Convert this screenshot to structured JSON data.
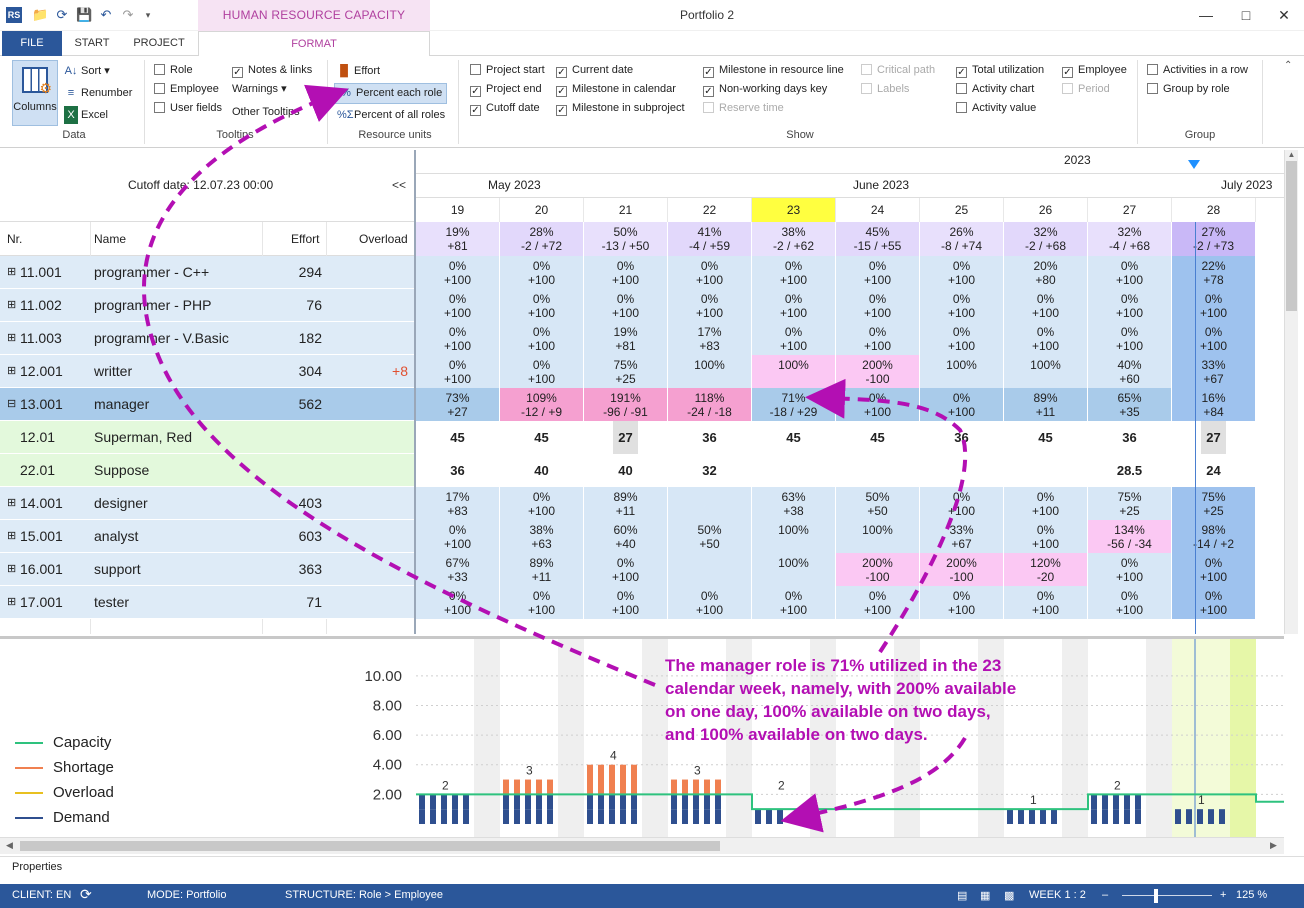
{
  "app": {
    "title": "Portfolio 2",
    "context_tab": "HUMAN RESOURCE CAPACITY PLANNING",
    "app_icon": "RS"
  },
  "tabs": [
    "FILE",
    "START",
    "PROJECT",
    "FORMAT"
  ],
  "ribbon": {
    "data": {
      "columns": "Columns",
      "sort": "Sort",
      "renumber": "Renumber",
      "excel": "Excel",
      "label": "Data"
    },
    "tooltips": {
      "role": "Role",
      "employee": "Employee",
      "user_fields": "User fields",
      "notes_links": "Notes & links",
      "warnings": "Warnings",
      "other_tooltips": "Other Tooltips",
      "label": "Tooltips"
    },
    "resource_units": {
      "effort": "Effort",
      "percent_each_role": "Percent each role",
      "percent_all_roles": "Percent of all roles",
      "label": "Resource units"
    },
    "show": {
      "project_start": "Project start",
      "project_end": "Project end",
      "cutoff_date": "Cutoff date",
      "current_date": "Current date",
      "milestone_calendar": "Milestone in calendar",
      "milestone_subproject": "Milestone in subproject",
      "milestone_resource": "Milestone in resource line",
      "nonworking": "Non-working days key",
      "reserve_time": "Reserve time",
      "critical_path": "Critical path",
      "labels": "Labels",
      "total_util": "Total utilization",
      "activity_chart": "Activity chart",
      "activity_value": "Activity value",
      "employee": "Employee",
      "period": "Period",
      "label": "Show"
    },
    "group": {
      "activities_row": "Activities in a row",
      "group_role": "Group by role",
      "label": "Group"
    }
  },
  "grid": {
    "cutoff": "Cutoff date: 12.07.23 00:00",
    "collapse": "<<",
    "headers": {
      "nr": "Nr.",
      "name": "Name",
      "effort": "Effort",
      "overload": "Overload"
    },
    "year": "2023",
    "months": [
      "May 2023",
      "June 2023",
      "July 2023"
    ],
    "weeks": [
      "19",
      "20",
      "21",
      "22",
      "23",
      "24",
      "25",
      "26",
      "27",
      "28"
    ],
    "totals": [
      [
        "19%",
        "+81"
      ],
      [
        "28%",
        "-2 / +72"
      ],
      [
        "50%",
        "-13 / +50"
      ],
      [
        "41%",
        "-4 / +59"
      ],
      [
        "38%",
        "-2 / +62"
      ],
      [
        "45%",
        "-15 / +55"
      ],
      [
        "26%",
        "-8 / +74"
      ],
      [
        "32%",
        "-2 / +68"
      ],
      [
        "32%",
        "-4 / +68"
      ],
      [
        "27%",
        "-2 / +73"
      ]
    ],
    "rows": [
      {
        "nr": "11.001",
        "name": "programmer - C++",
        "effort": "294",
        "overload": "",
        "cells": [
          [
            "0%",
            "+100"
          ],
          [
            "0%",
            "+100"
          ],
          [
            "0%",
            "+100"
          ],
          [
            "0%",
            "+100"
          ],
          [
            "0%",
            "+100"
          ],
          [
            "0%",
            "+100"
          ],
          [
            "0%",
            "+100"
          ],
          [
            "20%",
            "+80"
          ],
          [
            "0%",
            "+100"
          ],
          [
            "22%",
            "+78"
          ]
        ]
      },
      {
        "nr": "11.002",
        "name": "programmer - PHP",
        "effort": "76",
        "overload": "",
        "cells": [
          [
            "0%",
            "+100"
          ],
          [
            "0%",
            "+100"
          ],
          [
            "0%",
            "+100"
          ],
          [
            "0%",
            "+100"
          ],
          [
            "0%",
            "+100"
          ],
          [
            "0%",
            "+100"
          ],
          [
            "0%",
            "+100"
          ],
          [
            "0%",
            "+100"
          ],
          [
            "0%",
            "+100"
          ],
          [
            "0%",
            "+100"
          ]
        ]
      },
      {
        "nr": "11.003",
        "name": "programmer - V.Basic",
        "effort": "182",
        "overload": "",
        "cells": [
          [
            "0%",
            "+100"
          ],
          [
            "0%",
            "+100"
          ],
          [
            "19%",
            "+81"
          ],
          [
            "17%",
            "+83"
          ],
          [
            "0%",
            "+100"
          ],
          [
            "0%",
            "+100"
          ],
          [
            "0%",
            "+100"
          ],
          [
            "0%",
            "+100"
          ],
          [
            "0%",
            "+100"
          ],
          [
            "0%",
            "+100"
          ]
        ]
      },
      {
        "nr": "12.001",
        "name": "writter",
        "effort": "304",
        "overload": "+8",
        "cells": [
          [
            "0%",
            "+100"
          ],
          [
            "0%",
            "+100"
          ],
          [
            "75%",
            "+25"
          ],
          [
            "100%",
            ""
          ],
          [
            "100%",
            ""
          ],
          [
            "200%",
            "-100"
          ],
          [
            "100%",
            ""
          ],
          [
            "100%",
            ""
          ],
          [
            "40%",
            "+60"
          ],
          [
            "33%",
            "+67"
          ]
        ]
      },
      {
        "nr": "13.001",
        "name": "manager",
        "effort": "562",
        "overload": "",
        "cells": [
          [
            "73%",
            "+27"
          ],
          [
            "109%",
            "-12 / +9"
          ],
          [
            "191%",
            "-96 / -91"
          ],
          [
            "118%",
            "-24 / -18"
          ],
          [
            "71%",
            "-18 / +29"
          ],
          [
            "0%",
            "+100"
          ],
          [
            "0%",
            "+100"
          ],
          [
            "89%",
            "+11"
          ],
          [
            "65%",
            "+35"
          ],
          [
            "16%",
            "+84"
          ]
        ]
      },
      {
        "nr": "12.01",
        "name": "Superman, Red",
        "effort": "",
        "overload": "",
        "cells": [
          [
            "45",
            ""
          ],
          [
            "45",
            ""
          ],
          [
            "27",
            ""
          ],
          [
            "36",
            ""
          ],
          [
            "45",
            ""
          ],
          [
            "45",
            ""
          ],
          [
            "36",
            ""
          ],
          [
            "45",
            ""
          ],
          [
            "36",
            ""
          ],
          [
            "27",
            ""
          ]
        ]
      },
      {
        "nr": "22.01",
        "name": "Suppose",
        "effort": "",
        "overload": "",
        "cells": [
          [
            "36",
            ""
          ],
          [
            "40",
            ""
          ],
          [
            "40",
            ""
          ],
          [
            "32",
            ""
          ],
          [
            "",
            ""
          ],
          [
            "",
            ""
          ],
          [
            "",
            ""
          ],
          [
            "",
            ""
          ],
          [
            "28.5",
            ""
          ],
          [
            "24",
            ""
          ]
        ]
      },
      {
        "nr": "14.001",
        "name": "designer",
        "effort": "403",
        "overload": "",
        "cells": [
          [
            "17%",
            "+83"
          ],
          [
            "0%",
            "+100"
          ],
          [
            "89%",
            "+11"
          ],
          [
            "",
            ""
          ],
          [
            "63%",
            "+38"
          ],
          [
            "50%",
            "+50"
          ],
          [
            "0%",
            "+100"
          ],
          [
            "0%",
            "+100"
          ],
          [
            "75%",
            "+25"
          ],
          [
            "75%",
            "+25"
          ]
        ]
      },
      {
        "nr": "15.001",
        "name": "analyst",
        "effort": "603",
        "overload": "",
        "cells": [
          [
            "0%",
            "+100"
          ],
          [
            "38%",
            "+63"
          ],
          [
            "60%",
            "+40"
          ],
          [
            "50%",
            "+50"
          ],
          [
            "100%",
            ""
          ],
          [
            "100%",
            ""
          ],
          [
            "33%",
            "+67"
          ],
          [
            "0%",
            "+100"
          ],
          [
            "134%",
            "-56 / -34"
          ],
          [
            "98%",
            "-14 / +2"
          ]
        ]
      },
      {
        "nr": "16.001",
        "name": "support",
        "effort": "363",
        "overload": "",
        "cells": [
          [
            "67%",
            "+33"
          ],
          [
            "89%",
            "+11"
          ],
          [
            "0%",
            "+100"
          ],
          [
            "",
            ""
          ],
          [
            "100%",
            ""
          ],
          [
            "200%",
            "-100"
          ],
          [
            "200%",
            "-100"
          ],
          [
            "120%",
            "-20"
          ],
          [
            "0%",
            "+100"
          ],
          [
            "0%",
            "+100"
          ]
        ]
      },
      {
        "nr": "17.001",
        "name": "tester",
        "effort": "71",
        "overload": "",
        "cells": [
          [
            "0%",
            "+100"
          ],
          [
            "0%",
            "+100"
          ],
          [
            "0%",
            "+100"
          ],
          [
            "0%",
            "+100"
          ],
          [
            "0%",
            "+100"
          ],
          [
            "0%",
            "+100"
          ],
          [
            "0%",
            "+100"
          ],
          [
            "0%",
            "+100"
          ],
          [
            "0%",
            "+100"
          ],
          [
            "0%",
            "+100"
          ]
        ]
      }
    ]
  },
  "chart_data": {
    "type": "bar",
    "yticks": [
      "10.00",
      "8.00",
      "6.00",
      "4.00",
      "2.00"
    ],
    "ylim": [
      0,
      11
    ],
    "legend": [
      "Capacity",
      "Shortage",
      "Overload",
      "Demand"
    ],
    "colors": {
      "capacity": "#2ec27e",
      "shortage": "#f08050",
      "overload": "#e8c020",
      "demand": "#2f4f8f"
    },
    "bar_labels": [
      [
        "19",
        "2"
      ],
      [
        "20",
        "3"
      ],
      [
        "21",
        "4"
      ],
      [
        "22",
        "3"
      ],
      [
        "23",
        "2"
      ],
      [
        "26",
        "1"
      ],
      [
        "27",
        "2"
      ],
      [
        "28",
        "1"
      ]
    ]
  },
  "annotation": [
    "The manager role is 71% utilized in the 23",
    "calendar week, namely,  with 200% available",
    "on one day, 100% available on two days,",
    "and 100% available on two days."
  ],
  "properties": "Properties",
  "status": {
    "client": "CLIENT: EN",
    "mode": "MODE: Portfolio",
    "structure": "STRUCTURE: Role > Employee",
    "week": "WEEK 1 : 2",
    "zoom": "125 %"
  }
}
